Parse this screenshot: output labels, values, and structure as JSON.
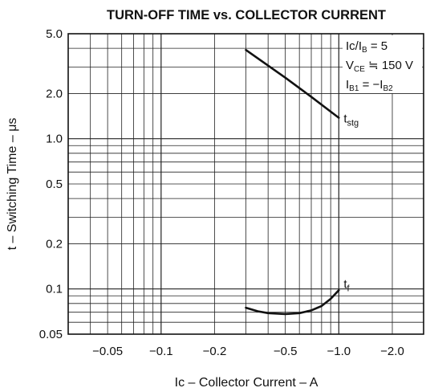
{
  "chart_data": {
    "type": "line",
    "title": "TURN-OFF TIME vs. COLLECTOR CURRENT",
    "xlabel": "Ic – Collector Current – A",
    "ylabel": "t – Switching Time – μs",
    "x_scale": "log",
    "y_scale": "log",
    "x_direction": "negative values, magnitude increasing to the right",
    "xlim": [
      -0.03,
      -3.0
    ],
    "ylim": [
      0.05,
      5.0
    ],
    "grid": true,
    "x_ticks": [
      {
        "value": -0.05,
        "label": "−0.05"
      },
      {
        "value": -0.1,
        "label": "−0.1"
      },
      {
        "value": -0.2,
        "label": "−0.2"
      },
      {
        "value": -0.5,
        "label": "−0.5"
      },
      {
        "value": -1.0,
        "label": "−1.0"
      },
      {
        "value": -2.0,
        "label": "−2.0"
      }
    ],
    "y_ticks": [
      {
        "value": 0.05,
        "label": "0.05"
      },
      {
        "value": 0.1,
        "label": "0.1"
      },
      {
        "value": 0.2,
        "label": "0.2"
      },
      {
        "value": 0.5,
        "label": "0.5"
      },
      {
        "value": 1.0,
        "label": "1.0"
      },
      {
        "value": 2.0,
        "label": "2.0"
      },
      {
        "value": 5.0,
        "label": "5.0"
      }
    ],
    "conditions": [
      {
        "line1": "Ic/IB = 5",
        "main": "Ic/I",
        "sub": "B",
        "rest": " = 5"
      },
      {
        "main": "V",
        "sub": "CE",
        "rest": " ≒ 150 V"
      },
      {
        "main": "I",
        "sub": "B1",
        "rest": " = −I",
        "sub2": "B2"
      }
    ],
    "series": [
      {
        "name": "tstg",
        "label_main": "t",
        "label_sub": "stg",
        "x": [
          -0.3,
          -0.5,
          -0.7,
          -1.0
        ],
        "y": [
          3.9,
          2.55,
          1.9,
          1.38
        ]
      },
      {
        "name": "tf",
        "label_main": "t",
        "label_sub": "f",
        "x": [
          -0.3,
          -0.35,
          -0.4,
          -0.5,
          -0.6,
          -0.7,
          -0.8,
          -0.9,
          -1.0
        ],
        "y": [
          0.075,
          0.071,
          0.069,
          0.068,
          0.069,
          0.072,
          0.077,
          0.086,
          0.098
        ]
      }
    ]
  }
}
